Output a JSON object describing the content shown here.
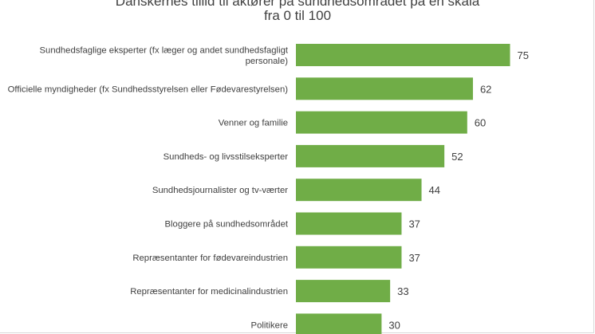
{
  "chart_data": {
    "type": "bar",
    "orientation": "horizontal",
    "title": "Danskernes tillid til aktører på sundhedsområdet på en skala",
    "subtitle": "fra 0 til 100",
    "categories": [
      "Sundhedsfaglige eksperter (fx læger og andet sundhedsfagligt personale)",
      "Officielle myndigheder (fx Sundhedsstyrelsen eller Fødevarestyrelsen)",
      "Venner og familie",
      "Sundheds- og livsstilseksperter",
      "Sundhedsjournalister og tv-værter",
      "Bloggere på sundhedsområdet",
      "Repræsentanter for fødevareindustrien",
      "Repræsentanter for medicinalindustrien",
      "Politikere"
    ],
    "category_lines": [
      [
        "Sundhedsfaglige eksperter (fx læger og andet sundhedsfagligt",
        "personale)"
      ],
      [
        "Officielle myndigheder (fx Sundhedsstyrelsen eller Fødevarestyrelsen)"
      ],
      [
        "Venner og familie"
      ],
      [
        "Sundheds- og livsstilseksperter"
      ],
      [
        "Sundhedsjournalister og tv-værter"
      ],
      [
        "Bloggere på sundhedsområdet"
      ],
      [
        "Repræsentanter for fødevareindustrien"
      ],
      [
        "Repræsentanter for medicinalindustrien"
      ],
      [
        "Politikere"
      ]
    ],
    "values": [
      75,
      62,
      60,
      52,
      44,
      37,
      37,
      33,
      30
    ],
    "xlim": [
      0,
      100
    ],
    "xlabel": "",
    "ylabel": "",
    "data_labels": true,
    "grid": false,
    "legend": "none",
    "bar_color": "#70ad47"
  }
}
